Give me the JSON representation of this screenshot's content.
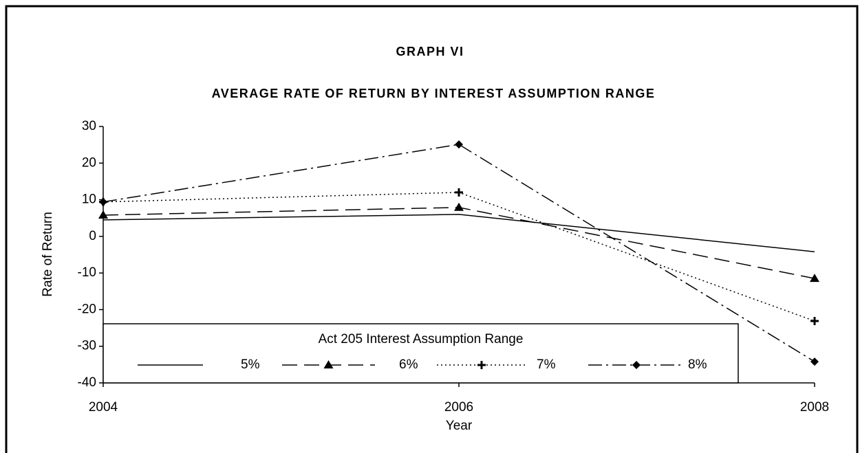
{
  "chart_data": {
    "type": "line",
    "title": "GRAPH VI",
    "subtitle": "AVERAGE RATE OF RETURN BY INTEREST ASSUMPTION RANGE",
    "x_label": "Year",
    "y_label": "Rate of Return",
    "x": [
      2004,
      2006,
      2008
    ],
    "xlim": [
      2004,
      2008
    ],
    "xticks": [
      2004,
      2006,
      2008
    ],
    "ylim": [
      -40,
      30
    ],
    "yticks": [
      -40,
      -30,
      -20,
      -10,
      0,
      10,
      20,
      30
    ],
    "grid": false,
    "legend": {
      "title": "Act 205 Interest Assumption Range",
      "loc": "lower left"
    },
    "series": [
      {
        "name": "5%",
        "color": "#000000",
        "dash": "solid",
        "marker": "none",
        "values": [
          4.5,
          6,
          -4.2
        ]
      },
      {
        "name": "6%",
        "color": "#000000",
        "dash": "dashed",
        "marker": "triangle",
        "values": [
          5.8,
          7.9,
          -11.5
        ]
      },
      {
        "name": "7%",
        "color": "#000000",
        "dash": "dotted",
        "marker": "plus",
        "values": [
          9.4,
          12,
          -23.1
        ]
      },
      {
        "name": "8%",
        "color": "#000000",
        "dash": "dashdot",
        "marker": "diamond",
        "values": [
          9.4,
          25.1,
          -34.2
        ]
      }
    ]
  }
}
